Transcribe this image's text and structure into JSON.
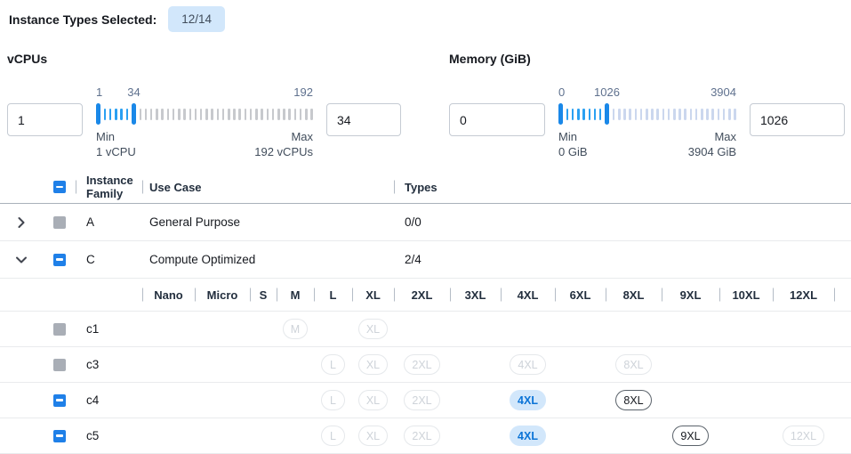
{
  "header": {
    "label": "Instance Types Selected:",
    "badge": "12/14"
  },
  "filters": {
    "vcpus": {
      "title": "vCPUs",
      "min_input": "1",
      "max_input": "34",
      "scale": {
        "low": "1",
        "current": "34",
        "high": "192"
      },
      "min_label": "Min",
      "min_value": "1 vCPU",
      "max_label": "Max",
      "max_value": "192 vCPUs",
      "ticks": {
        "between": 5,
        "after": 32
      }
    },
    "memory": {
      "title": "Memory (GiB)",
      "min_input": "0",
      "max_input": "1026",
      "scale": {
        "low": "0",
        "current": "1026",
        "high": "3904"
      },
      "min_label": "Min",
      "min_value": "0 GiB",
      "max_label": "Max",
      "max_value": "3904 GiB",
      "ticks": {
        "between": 7,
        "after": 23
      }
    }
  },
  "table": {
    "columns": {
      "family": "Instance Family",
      "use_case": "Use Case",
      "types": "Types"
    },
    "size_header": [
      "Nano",
      "Micro",
      "S",
      "M",
      "L",
      "XL",
      "2XL",
      "3XL",
      "4XL",
      "6XL",
      "8XL",
      "9XL",
      "10XL",
      "12XL"
    ],
    "rows": [
      {
        "family": "A",
        "use_case": "General Purpose",
        "types": "0/0",
        "expanded": false,
        "checkbox": "disabled"
      },
      {
        "family": "C",
        "use_case": "Compute Optimized",
        "types": "2/4",
        "expanded": true,
        "checkbox": "indeterminate",
        "children": [
          {
            "name": "c1",
            "checkbox": "disabled",
            "chips": [
              {
                "size": "M",
                "state": "disabled"
              },
              {
                "size": "XL",
                "state": "disabled"
              }
            ]
          },
          {
            "name": "c3",
            "checkbox": "disabled",
            "chips": [
              {
                "size": "L",
                "state": "disabled"
              },
              {
                "size": "XL",
                "state": "disabled"
              },
              {
                "size": "2XL",
                "state": "disabled"
              },
              {
                "size": "4XL",
                "state": "disabled"
              },
              {
                "size": "8XL",
                "state": "disabled"
              }
            ]
          },
          {
            "name": "c4",
            "checkbox": "indeterminate",
            "chips": [
              {
                "size": "L",
                "state": "disabled"
              },
              {
                "size": "XL",
                "state": "disabled"
              },
              {
                "size": "2XL",
                "state": "disabled"
              },
              {
                "size": "4XL",
                "state": "selected"
              },
              {
                "size": "8XL",
                "state": "enabled"
              }
            ]
          },
          {
            "name": "c5",
            "checkbox": "indeterminate",
            "chips": [
              {
                "size": "L",
                "state": "disabled"
              },
              {
                "size": "XL",
                "state": "disabled"
              },
              {
                "size": "2XL",
                "state": "disabled"
              },
              {
                "size": "4XL",
                "state": "selected"
              },
              {
                "size": "9XL",
                "state": "enabled"
              },
              {
                "size": "12XL",
                "state": "disabled"
              }
            ]
          }
        ]
      }
    ]
  },
  "colors": {
    "accent_blue": "#1f80e8",
    "slider_handle_blue": "#1a88e8",
    "tick_selected": "#2aa0f2",
    "tick_idle_vcpu": "#c7c9cd",
    "tick_idle_memory": "#cbd7ee",
    "badge_bg": "#d2e7fb",
    "chip_selected_bg": "#d2e7fb",
    "chip_selected_text": "#0a73d6",
    "disabled_checkbox_gray": "#a9aeb6"
  }
}
